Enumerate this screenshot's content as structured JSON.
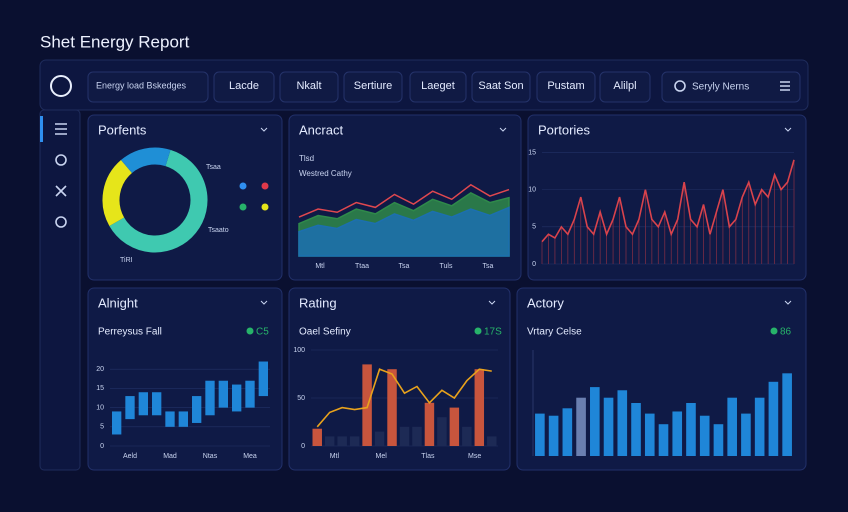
{
  "header": {
    "title": "Shet Energy Report"
  },
  "toolbar": {
    "items": [
      "Energy load Bskedges",
      "Lacde",
      "Nkalt",
      "Sertiure",
      "Laeget",
      "Saat Son",
      "Pustam",
      "Alilpl"
    ],
    "search": "Seryly Nerns"
  },
  "panels": [
    {
      "title": "Porfents",
      "labels": [
        "Tsaa",
        "Tsaato",
        "TiRI"
      ],
      "chart": {
        "type": "donut",
        "values": [
          62,
          22,
          16
        ],
        "colors": [
          "#3fc9b0",
          "#e6e51a",
          "#1f8fd6"
        ],
        "legend_colors": [
          "#2f8ff0",
          "#e0394a",
          "#27b36a",
          "#e6e51a"
        ]
      }
    },
    {
      "title": "Ancract",
      "labels": [
        "Tlsd",
        "Westred Cathy"
      ],
      "chart": {
        "type": "area",
        "ylim": [
          0,
          100
        ],
        "categories": [
          "Mtl",
          "Ttaa",
          "Tsa",
          "Tuls",
          "Tsa"
        ],
        "series": [
          {
            "color": "#e0484f",
            "fill": false,
            "values": [
              48,
              58,
              54,
              66,
              60,
              76,
              64,
              80,
              70,
              88,
              74,
              82
            ]
          },
          {
            "color": "#2f8a4a",
            "fill": true,
            "values": [
              40,
              50,
              46,
              58,
              52,
              66,
              56,
              70,
              62,
              78,
              66,
              72
            ]
          },
          {
            "color": "#1c6fb0",
            "fill": true,
            "values": [
              30,
              38,
              34,
              45,
              40,
              52,
              44,
              55,
              48,
              58,
              50,
              60
            ]
          }
        ]
      }
    },
    {
      "title": "Portories",
      "chart": {
        "type": "line",
        "ylim": [
          0,
          16
        ],
        "yticks": [
          0,
          5,
          10,
          15
        ],
        "color": "#d9434c",
        "values": [
          3,
          4,
          3.5,
          5,
          4,
          6,
          9,
          5,
          4,
          7,
          4,
          6,
          9,
          5,
          4,
          6,
          10,
          6,
          5,
          7,
          4,
          6,
          11,
          6,
          5,
          8,
          4,
          7,
          10,
          5,
          6,
          9,
          11,
          8,
          10,
          9,
          12,
          10,
          11,
          14
        ]
      }
    },
    {
      "title": "Alnight",
      "subtitle": "Perreysus Fall",
      "badge": "C5",
      "badge_color": "#27b36a",
      "chart": {
        "type": "range",
        "ylim": [
          0,
          25
        ],
        "yticks": [
          0,
          5,
          10,
          15,
          20
        ],
        "color": "#1f86d8",
        "categories": [
          "Aeld",
          "Mad",
          "Ntas",
          "Mea"
        ],
        "lows": [
          3,
          7,
          8,
          8,
          5,
          5,
          6,
          8,
          10,
          9,
          10,
          13
        ],
        "highs": [
          9,
          13,
          14,
          14,
          9,
          9,
          13,
          17,
          17,
          16,
          17,
          22
        ]
      }
    },
    {
      "title": "Rating",
      "subtitle": "Oael Sefiny",
      "badge": "17S",
      "badge_color": "#27b36a",
      "chart": {
        "type": "barline",
        "ylim": [
          0,
          100
        ],
        "yticks": [
          0,
          50,
          100
        ],
        "categories": [
          "Mtl",
          "Mel",
          "Tlas",
          "Mse"
        ],
        "values": [
          18,
          10,
          10,
          10,
          85,
          15,
          80,
          20,
          20,
          45,
          30,
          40,
          20,
          80,
          10
        ],
        "colors": [
          "#c8553d",
          "#1d2a55",
          "#1d2a55",
          "#1d2a55",
          "#c8553d",
          "#1d2a55",
          "#c8553d",
          "#1d2a55",
          "#1d2a55",
          "#c8553d",
          "#1d2a55",
          "#c8553d",
          "#1d2a55",
          "#c8553d",
          "#1d2a55"
        ],
        "line": [
          20,
          35,
          40,
          38,
          40,
          80,
          75,
          55,
          62,
          45,
          58,
          50,
          68,
          80,
          78
        ],
        "line_color": "#e8a21c"
      }
    },
    {
      "title": "Actory",
      "subtitle": "Vrtary Celse",
      "badge": "86",
      "badge_color": "#27b36a",
      "chart": {
        "type": "bar",
        "ylim": [
          0,
          100
        ],
        "values": [
          40,
          38,
          45,
          55,
          65,
          55,
          62,
          50,
          40,
          30,
          42,
          50,
          38,
          30,
          55,
          40,
          55,
          70,
          78
        ],
        "colors": [
          "#1f86d8",
          "#1f86d8",
          "#1f86d8",
          "#6a7fb0",
          "#1f86d8",
          "#1f86d8",
          "#1f86d8",
          "#1f86d8",
          "#1f86d8",
          "#1f86d8",
          "#1f86d8",
          "#1f86d8",
          "#1f86d8",
          "#1f86d8",
          "#1f86d8",
          "#1f86d8",
          "#1f86d8",
          "#1f86d8",
          "#1f86d8"
        ]
      }
    }
  ]
}
